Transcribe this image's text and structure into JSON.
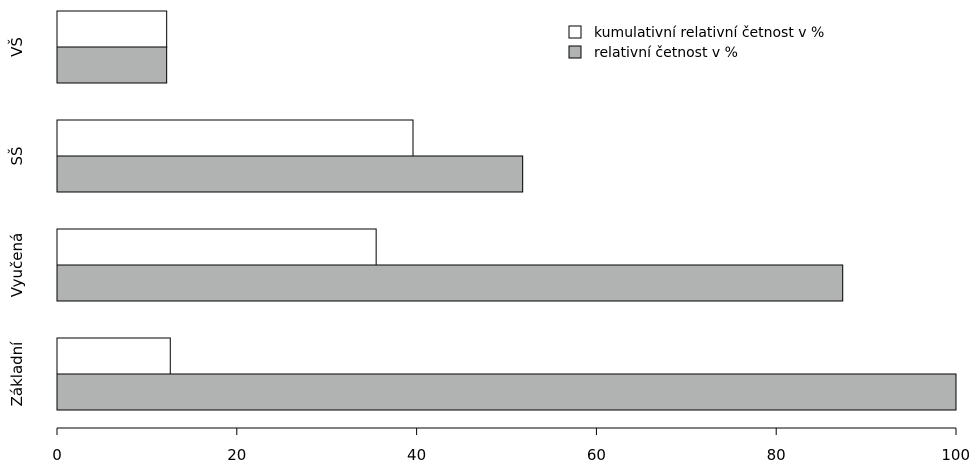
{
  "chart_data": {
    "type": "bar",
    "orientation": "horizontal",
    "categories": [
      "Základní",
      "Vyučená",
      "SŠ",
      "VŠ"
    ],
    "series": [
      {
        "name": "relativní četnost v %",
        "color": "#b1b3b3",
        "values": [
          100,
          87.4,
          51.8,
          12.2
        ]
      },
      {
        "name": "kumulativní relativní četnost v %",
        "color": "#ffffff",
        "values": [
          12.6,
          35.5,
          39.6,
          12.2
        ]
      }
    ],
    "x_ticks": [
      0,
      20,
      40,
      60,
      80,
      100
    ],
    "xlim": [
      0,
      100
    ],
    "title": "",
    "xlabel": "",
    "ylabel": "",
    "grid": false,
    "legend_position": "top-right"
  }
}
